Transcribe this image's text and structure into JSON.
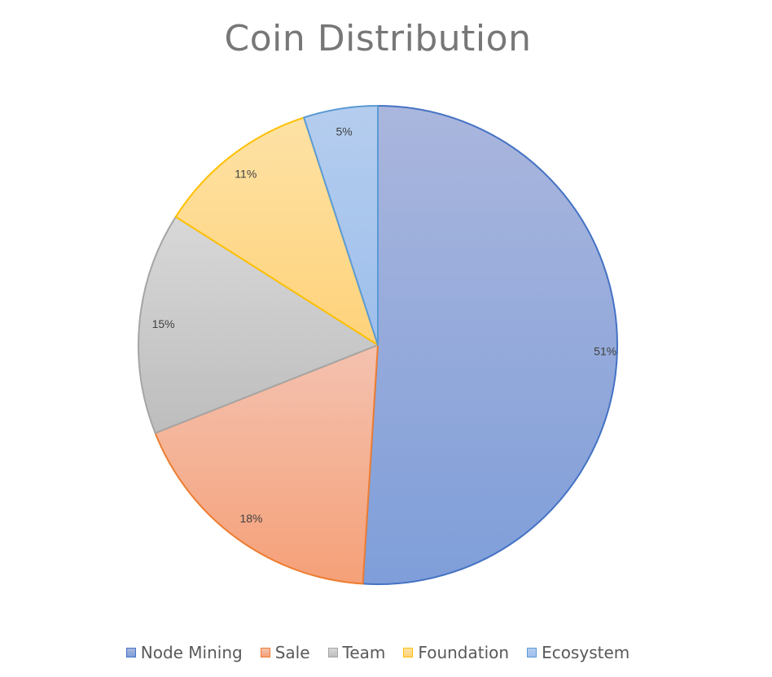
{
  "chart_data": {
    "type": "pie",
    "title": "Coin Distribution",
    "legend_position": "bottom",
    "slices": [
      {
        "name": "Node Mining",
        "value": 51,
        "label": "51%",
        "fill_top": "#aab6dd",
        "fill_bottom": "#7f9ed9",
        "stroke": "#4472c4"
      },
      {
        "name": "Sale",
        "value": 18,
        "label": "18%",
        "fill_top": "#f4c2b0",
        "fill_bottom": "#f5a078",
        "stroke": "#ed7d31"
      },
      {
        "name": "Team",
        "value": 15,
        "label": "15%",
        "fill_top": "#d8d8d8",
        "fill_bottom": "#bdbdbd",
        "stroke": "#a5a5a5"
      },
      {
        "name": "Foundation",
        "value": 11,
        "label": "11%",
        "fill_top": "#fde2a5",
        "fill_bottom": "#ffd27a",
        "stroke": "#ffc000"
      },
      {
        "name": "Ecosystem",
        "value": 5,
        "label": "5%",
        "fill_top": "#b5cdee",
        "fill_bottom": "#9dbfec",
        "stroke": "#5b9bd5"
      }
    ]
  }
}
